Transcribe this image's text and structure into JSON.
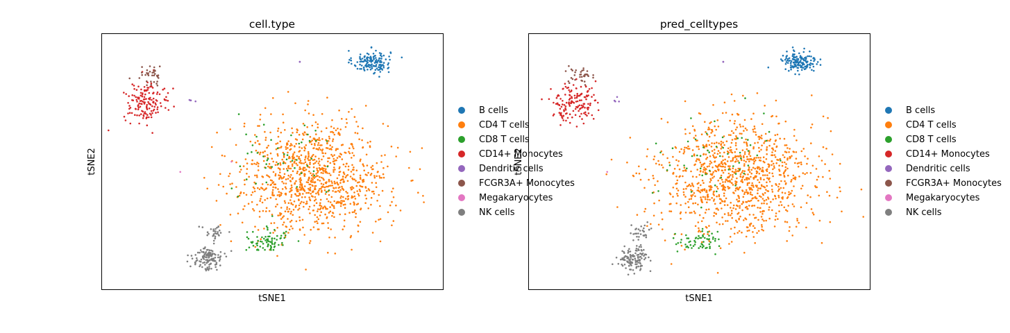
{
  "chart_data": [
    {
      "type": "scatter",
      "title": "cell.type",
      "xlabel": "tSNE1",
      "ylabel": "tSNE2",
      "grid": false,
      "ticks": false,
      "legend_position": "right",
      "legend": [
        {
          "name": "B cells",
          "color": "#1f77b4"
        },
        {
          "name": "CD4 T cells",
          "color": "#ff7f0e"
        },
        {
          "name": "CD8 T cells",
          "color": "#2ca02c"
        },
        {
          "name": "CD14+ Monocytes",
          "color": "#d62728"
        },
        {
          "name": "Dendritic cells",
          "color": "#9467bd"
        },
        {
          "name": "FCGR3A+ Monocytes",
          "color": "#8c564b"
        },
        {
          "name": "Megakaryocytes",
          "color": "#e377c2"
        },
        {
          "name": "NK cells",
          "color": "#7f7f7f"
        }
      ],
      "clusters": [
        {
          "cell_type": "B cells",
          "center": [
            0.79,
            0.89
          ],
          "spread": [
            0.05,
            0.04
          ],
          "n": 150
        },
        {
          "cell_type": "CD4 T cells",
          "center": [
            0.62,
            0.44
          ],
          "spread": [
            0.2,
            0.2
          ],
          "n": 1050
        },
        {
          "cell_type": "CD8 T cells",
          "center": [
            0.49,
            0.19
          ],
          "spread": [
            0.06,
            0.04
          ],
          "n": 75
        },
        {
          "cell_type": "CD8 T cells",
          "center": [
            0.54,
            0.52
          ],
          "spread": [
            0.15,
            0.14
          ],
          "n": 50
        },
        {
          "cell_type": "CD14+ Monocytes",
          "center": [
            0.13,
            0.73
          ],
          "spread": [
            0.06,
            0.07
          ],
          "n": 150
        },
        {
          "cell_type": "Dendritic cells",
          "center": [
            0.26,
            0.74
          ],
          "spread": [
            0.01,
            0.01
          ],
          "n": 4
        },
        {
          "cell_type": "Dendritic cells",
          "center": [
            0.58,
            0.89
          ],
          "spread": [
            0.0,
            0.0
          ],
          "n": 2
        },
        {
          "cell_type": "FCGR3A+ Monocytes",
          "center": [
            0.15,
            0.84
          ],
          "spread": [
            0.03,
            0.03
          ],
          "n": 35
        },
        {
          "cell_type": "Megakaryocytes",
          "center": [
            0.23,
            0.46
          ],
          "spread": [
            0.0,
            0.0
          ],
          "n": 1
        },
        {
          "cell_type": "Megakaryocytes",
          "center": [
            0.38,
            0.5
          ],
          "spread": [
            0.0,
            0.0
          ],
          "n": 1
        },
        {
          "cell_type": "NK cells",
          "center": [
            0.31,
            0.12
          ],
          "spread": [
            0.04,
            0.04
          ],
          "n": 120
        },
        {
          "cell_type": "NK cells",
          "center": [
            0.33,
            0.22
          ],
          "spread": [
            0.03,
            0.03
          ],
          "n": 30
        }
      ]
    },
    {
      "type": "scatter",
      "title": "pred_celltypes",
      "xlabel": "tSNE1",
      "ylabel": "tSNE2",
      "grid": false,
      "ticks": false,
      "legend_position": "right",
      "legend": [
        {
          "name": "B cells",
          "color": "#1f77b4"
        },
        {
          "name": "CD4 T cells",
          "color": "#ff7f0e"
        },
        {
          "name": "CD8 T cells",
          "color": "#2ca02c"
        },
        {
          "name": "CD14+ Monocytes",
          "color": "#d62728"
        },
        {
          "name": "Dendritic cells",
          "color": "#9467bd"
        },
        {
          "name": "FCGR3A+ Monocytes",
          "color": "#8c564b"
        },
        {
          "name": "Megakaryocytes",
          "color": "#e377c2"
        },
        {
          "name": "NK cells",
          "color": "#7f7f7f"
        }
      ],
      "clusters": [
        {
          "cell_type": "B cells",
          "center": [
            0.79,
            0.89
          ],
          "spread": [
            0.05,
            0.04
          ],
          "n": 150
        },
        {
          "cell_type": "CD4 T cells",
          "center": [
            0.61,
            0.44
          ],
          "spread": [
            0.21,
            0.21
          ],
          "n": 1080
        },
        {
          "cell_type": "CD8 T cells",
          "center": [
            0.5,
            0.19
          ],
          "spread": [
            0.06,
            0.04
          ],
          "n": 60
        },
        {
          "cell_type": "CD8 T cells",
          "center": [
            0.53,
            0.5
          ],
          "spread": [
            0.15,
            0.15
          ],
          "n": 55
        },
        {
          "cell_type": "CD14+ Monocytes",
          "center": [
            0.13,
            0.73
          ],
          "spread": [
            0.06,
            0.07
          ],
          "n": 150
        },
        {
          "cell_type": "Dendritic cells",
          "center": [
            0.26,
            0.74
          ],
          "spread": [
            0.01,
            0.01
          ],
          "n": 4
        },
        {
          "cell_type": "Dendritic cells",
          "center": [
            0.57,
            0.89
          ],
          "spread": [
            0.0,
            0.0
          ],
          "n": 2
        },
        {
          "cell_type": "FCGR3A+ Monocytes",
          "center": [
            0.15,
            0.84
          ],
          "spread": [
            0.03,
            0.03
          ],
          "n": 35
        },
        {
          "cell_type": "Megakaryocytes",
          "center": [
            0.23,
            0.46
          ],
          "spread": [
            0.0,
            0.0
          ],
          "n": 1
        },
        {
          "cell_type": "NK cells",
          "center": [
            0.31,
            0.12
          ],
          "spread": [
            0.04,
            0.04
          ],
          "n": 120
        },
        {
          "cell_type": "NK cells",
          "center": [
            0.33,
            0.22
          ],
          "spread": [
            0.03,
            0.03
          ],
          "n": 30
        }
      ]
    }
  ]
}
